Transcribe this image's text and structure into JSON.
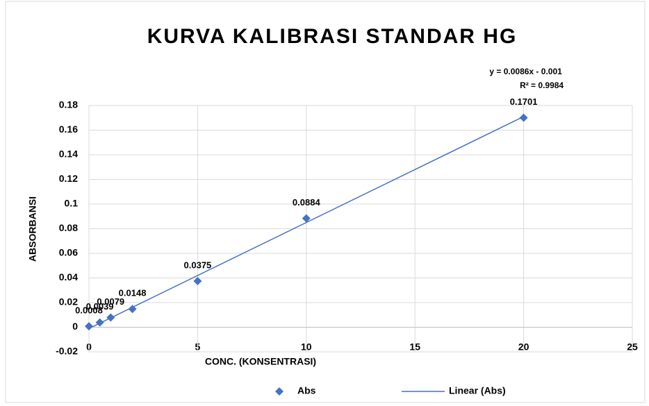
{
  "chart_data": {
    "type": "scatter",
    "title": "KURVA KALIBRASI STANDAR HG",
    "x_label": "CONC. (KONSENTRASI)",
    "y_label": "ABSORBANSI",
    "x": [
      0,
      0.5,
      1,
      2,
      5,
      10,
      20
    ],
    "series": [
      {
        "name": "Abs",
        "color": "#4472c4",
        "values": [
          0.0008,
          0.0039,
          0.0079,
          0.0148,
          0.0375,
          0.0884,
          0.1701
        ]
      }
    ],
    "trendline": {
      "name": "Linear (Abs)",
      "color": "#4472c4",
      "slope": 0.0086,
      "intercept": -0.001,
      "equation": "y = 0.0086x - 0.001",
      "r_squared": "R² = 0.9984"
    },
    "xlim": [
      0,
      25
    ],
    "xticks": [
      0,
      5,
      10,
      15,
      20,
      25
    ],
    "ylim": [
      -0.02,
      0.18
    ],
    "yticks": [
      -0.02,
      0,
      0.02,
      0.04,
      0.06,
      0.08,
      0.1,
      0.12,
      0.14,
      0.16,
      0.18
    ],
    "grid": true,
    "legend": "bottom"
  }
}
